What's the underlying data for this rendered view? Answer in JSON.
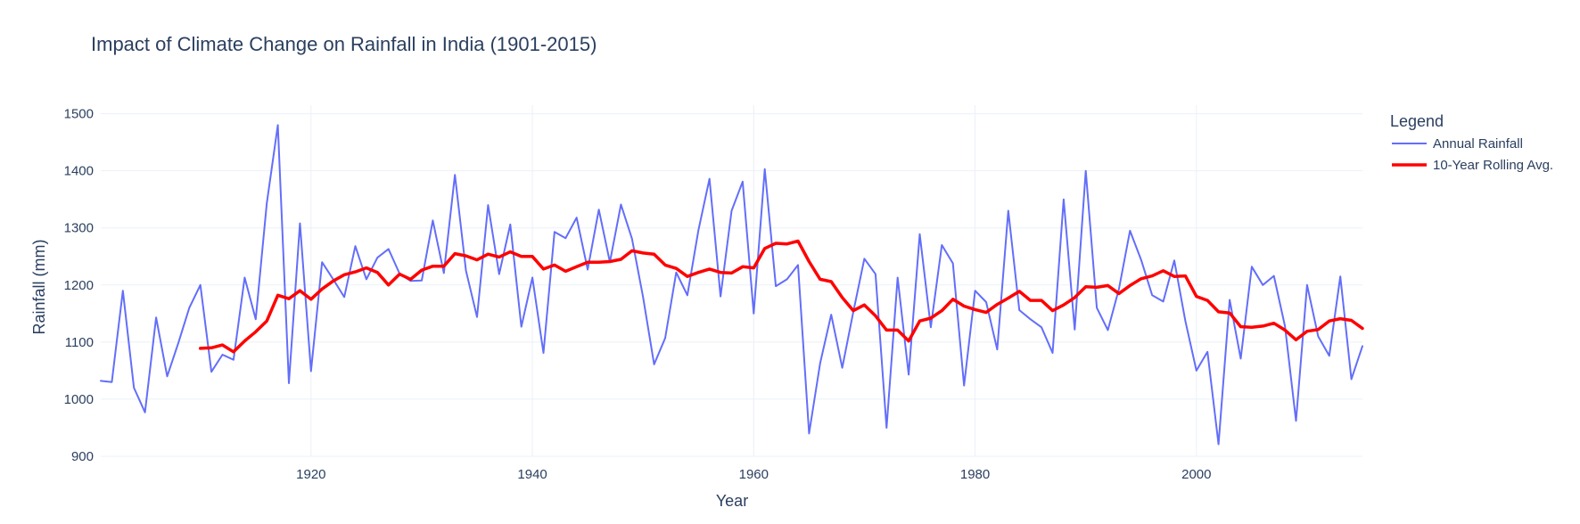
{
  "chart_data": {
    "type": "line",
    "title": "Impact of Climate Change on Rainfall in India (1901-2015)",
    "xlabel": "Year",
    "ylabel": "Rainfall (mm)",
    "xlim": [
      1901,
      2015
    ],
    "ylim": [
      900,
      1515
    ],
    "x_ticks": [
      1920,
      1940,
      1960,
      1980,
      2000
    ],
    "y_ticks": [
      900,
      1000,
      1100,
      1200,
      1300,
      1400,
      1500
    ],
    "grid": true,
    "legend": {
      "title": "Legend",
      "placement": "right"
    },
    "series": [
      {
        "name": "Annual Rainfall",
        "color": "#636efa",
        "x": [
          1901,
          1902,
          1903,
          1904,
          1905,
          1906,
          1907,
          1908,
          1909,
          1910,
          1911,
          1912,
          1913,
          1914,
          1915,
          1916,
          1917,
          1918,
          1919,
          1920,
          1921,
          1922,
          1923,
          1924,
          1925,
          1926,
          1927,
          1928,
          1929,
          1930,
          1931,
          1932,
          1933,
          1934,
          1935,
          1936,
          1937,
          1938,
          1939,
          1940,
          1941,
          1942,
          1943,
          1944,
          1945,
          1946,
          1947,
          1948,
          1949,
          1950,
          1951,
          1952,
          1953,
          1954,
          1955,
          1956,
          1957,
          1958,
          1959,
          1960,
          1961,
          1962,
          1963,
          1964,
          1965,
          1966,
          1967,
          1968,
          1969,
          1970,
          1971,
          1972,
          1973,
          1974,
          1975,
          1976,
          1977,
          1978,
          1979,
          1980,
          1981,
          1982,
          1983,
          1984,
          1985,
          1986,
          1987,
          1988,
          1989,
          1990,
          1991,
          1992,
          1993,
          1994,
          1995,
          1996,
          1997,
          1998,
          1999,
          2000,
          2001,
          2002,
          2003,
          2004,
          2005,
          2006,
          2007,
          2008,
          2009,
          2010,
          2011,
          2012,
          2013,
          2014,
          2015
        ],
        "values": [
          1032,
          1030,
          1190,
          1020,
          977,
          1143,
          1040,
          1098,
          1160,
          1200,
          1048,
          1078,
          1069,
          1213,
          1140,
          1343,
          1480,
          1028,
          1308,
          1049,
          1240,
          1210,
          1179,
          1268,
          1210,
          1248,
          1263,
          1220,
          1207,
          1208,
          1313,
          1221,
          1393,
          1225,
          1144,
          1340,
          1219,
          1306,
          1127,
          1213,
          1081,
          1293,
          1282,
          1318,
          1227,
          1332,
          1240,
          1341,
          1281,
          1179,
          1061,
          1107,
          1222,
          1182,
          1296,
          1386,
          1180,
          1330,
          1381,
          1150,
          1403,
          1198,
          1210,
          1235,
          940,
          1063,
          1148,
          1055,
          1153,
          1246,
          1219,
          950,
          1213,
          1043,
          1289,
          1126,
          1270,
          1238,
          1024,
          1190,
          1170,
          1087,
          1330,
          1156,
          1140,
          1126,
          1081,
          1350,
          1122,
          1400,
          1160,
          1121,
          1193,
          1295,
          1244,
          1182,
          1171,
          1243,
          1137,
          1050,
          1083,
          921,
          1174,
          1071,
          1232,
          1200,
          1216,
          1128,
          962,
          1200,
          1110,
          1076,
          1215,
          1035,
          1093
        ]
      },
      {
        "name": "10-Year Rolling Avg.",
        "color": "#ff0000",
        "x": [
          1910,
          1911,
          1912,
          1913,
          1914,
          1915,
          1916,
          1917,
          1918,
          1919,
          1920,
          1921,
          1922,
          1923,
          1924,
          1925,
          1926,
          1927,
          1928,
          1929,
          1930,
          1931,
          1932,
          1933,
          1934,
          1935,
          1936,
          1937,
          1938,
          1939,
          1940,
          1941,
          1942,
          1943,
          1944,
          1945,
          1946,
          1947,
          1948,
          1949,
          1950,
          1951,
          1952,
          1953,
          1954,
          1955,
          1956,
          1957,
          1958,
          1959,
          1960,
          1961,
          1962,
          1963,
          1964,
          1965,
          1966,
          1967,
          1968,
          1969,
          1970,
          1971,
          1972,
          1973,
          1974,
          1975,
          1976,
          1977,
          1978,
          1979,
          1980,
          1981,
          1982,
          1983,
          1984,
          1985,
          1986,
          1987,
          1988,
          1989,
          1990,
          1991,
          1992,
          1993,
          1994,
          1995,
          1996,
          1997,
          1998,
          1999,
          2000,
          2001,
          2002,
          2003,
          2004,
          2005,
          2006,
          2007,
          2008,
          2009,
          2010,
          2011,
          2012,
          2013,
          2014,
          2015
        ],
        "values": [
          1089,
          1090,
          1095,
          1083,
          1102,
          1118,
          1137,
          1182,
          1176,
          1190,
          1175,
          1193,
          1207,
          1218,
          1223,
          1230,
          1222,
          1200,
          1219,
          1210,
          1226,
          1233,
          1233,
          1255,
          1251,
          1244,
          1254,
          1249,
          1258,
          1250,
          1250,
          1228,
          1235,
          1224,
          1232,
          1240,
          1240,
          1241,
          1245,
          1260,
          1256,
          1254,
          1235,
          1229,
          1215,
          1222,
          1228,
          1222,
          1221,
          1232,
          1230,
          1264,
          1273,
          1272,
          1277,
          1241,
          1210,
          1206,
          1178,
          1155,
          1165,
          1146,
          1121,
          1121,
          1102,
          1137,
          1142,
          1155,
          1175,
          1163,
          1157,
          1152,
          1166,
          1177,
          1189,
          1173,
          1173,
          1155,
          1165,
          1178,
          1197,
          1196,
          1199,
          1185,
          1199,
          1211,
          1216,
          1225,
          1215,
          1216,
          1180,
          1173,
          1153,
          1151,
          1127,
          1126,
          1128,
          1133,
          1121,
          1104,
          1119,
          1122,
          1137,
          1141,
          1138,
          1124
        ]
      }
    ]
  }
}
